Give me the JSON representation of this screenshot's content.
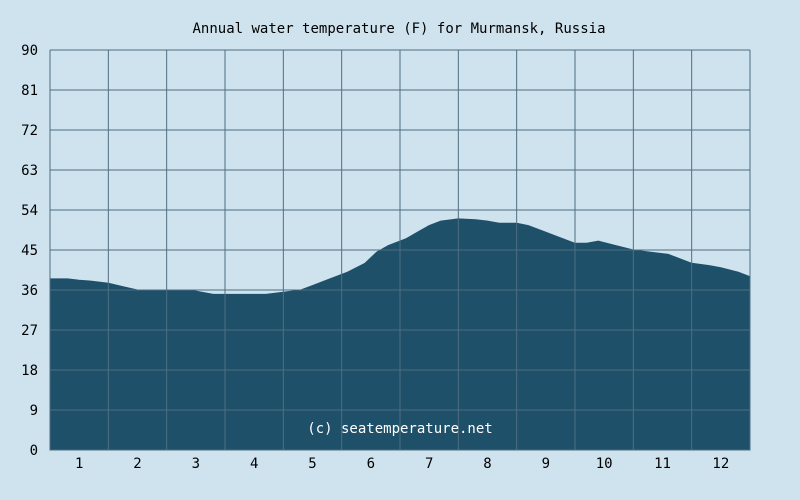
{
  "chart_data": {
    "type": "area",
    "title": "Annual water temperature (F) for Murmansk, Russia",
    "xlabel": "",
    "ylabel": "",
    "x_ticks": [
      "1",
      "2",
      "3",
      "4",
      "5",
      "6",
      "7",
      "8",
      "9",
      "10",
      "11",
      "12"
    ],
    "y_ticks": [
      "0",
      "9",
      "18",
      "27",
      "36",
      "45",
      "54",
      "63",
      "72",
      "81",
      "90"
    ],
    "ylim": [
      0,
      90
    ],
    "xlim": [
      0.5,
      12.5
    ],
    "grid": true,
    "legend": "none",
    "series": [
      {
        "x": [
          0.5,
          0.8,
          1.0,
          1.2,
          1.5,
          1.8,
          2.0,
          2.3,
          2.6,
          2.9,
          3.1,
          3.3,
          3.5,
          3.7,
          4.0,
          4.2,
          4.5,
          4.8,
          5.0,
          5.3,
          5.6,
          5.9,
          6.1,
          6.3,
          6.6,
          6.8,
          7.0,
          7.2,
          7.5,
          7.8,
          8.0,
          8.2,
          8.5,
          8.7,
          9.0,
          9.2,
          9.5,
          9.7,
          9.9,
          10.2,
          10.5,
          10.8,
          11.1,
          11.3,
          11.5,
          11.8,
          12.0,
          12.3,
          12.5
        ],
        "values": [
          38.5,
          38.5,
          38.2,
          38.0,
          37.5,
          36.6,
          36.0,
          36.0,
          36.0,
          36.0,
          35.5,
          35.0,
          35.0,
          35.0,
          35.0,
          35.0,
          35.5,
          36.0,
          37.0,
          38.5,
          40.0,
          42.0,
          44.5,
          46.0,
          47.5,
          49.0,
          50.5,
          51.5,
          52.0,
          51.8,
          51.5,
          51.0,
          51.0,
          50.5,
          49.0,
          48.0,
          46.5,
          46.5,
          47.0,
          46.0,
          45.0,
          44.5,
          44.0,
          43.0,
          42.0,
          41.5,
          41.0,
          40.0,
          39.0
        ]
      }
    ],
    "colors": {
      "background": "#cfe3ee",
      "area_fill": "#1e506a",
      "grid": "#4e6e82"
    },
    "watermark": "(c) seatemperature.net"
  }
}
